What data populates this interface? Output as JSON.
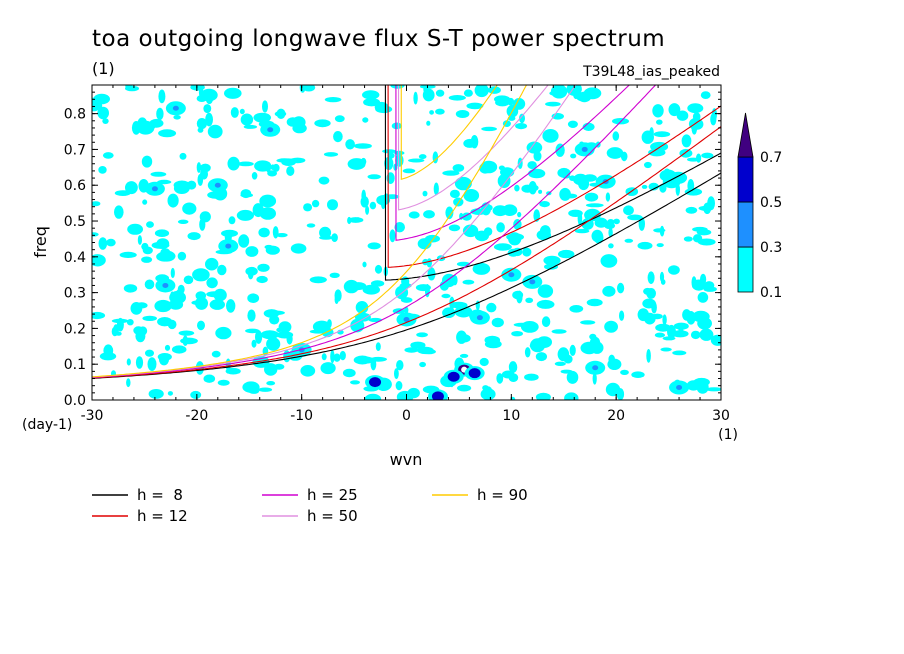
{
  "chart_data": {
    "type": "heatmap",
    "title": "toa outgoing longwave flux S-T power spectrum",
    "subtitle_left": "(1)",
    "subtitle_right": "T39L48_ias_peaked",
    "xlabel": "wvn",
    "ylabel": "freq",
    "x_unit": "(1)",
    "y_unit": "(day-1)",
    "xlim": [
      -30,
      30
    ],
    "ylim": [
      0,
      0.88
    ],
    "x_ticks": [
      -30,
      -20,
      -10,
      0,
      10,
      20,
      30
    ],
    "x_tick_labels": [
      "-30",
      "-20",
      "-10",
      "0",
      "10",
      "20",
      "30"
    ],
    "y_ticks": [
      0,
      0.1,
      0.2,
      0.3,
      0.4,
      0.5,
      0.6,
      0.7,
      0.8
    ],
    "y_tick_labels": [
      "0.0",
      "0.1",
      "0.2",
      "0.3",
      "0.4",
      "0.5",
      "0.6",
      "0.7",
      "0.8"
    ],
    "colorbar": {
      "levels": [
        0.1,
        0.3,
        0.5,
        0.7
      ],
      "labels": [
        "0.1",
        "0.3",
        "0.5",
        "0.7"
      ],
      "colors": [
        "#00ffff",
        "#1e90ff",
        "#0000cd",
        "#400080"
      ]
    },
    "series": [
      {
        "name": "h =  8",
        "h": 8,
        "color": "#000000"
      },
      {
        "name": "h = 12",
        "h": 12,
        "color": "#e00000"
      },
      {
        "name": "h = 25",
        "h": 25,
        "color": "#d000d0"
      },
      {
        "name": "h = 50",
        "h": 50,
        "color": "#e090e0"
      },
      {
        "name": "h = 90",
        "h": 90,
        "color": "#ffcc00"
      }
    ],
    "blobs": [
      {
        "x": 5.5,
        "y": 0.085,
        "level": 0.7
      },
      {
        "x": 6.5,
        "y": 0.075,
        "level": 0.5
      },
      {
        "x": 4.5,
        "y": 0.065,
        "level": 0.5
      },
      {
        "x": -3,
        "y": 0.05,
        "level": 0.5
      },
      {
        "x": 3,
        "y": 0.01,
        "level": 0.5
      },
      {
        "x": 26,
        "y": 0.035,
        "level": 0.3
      },
      {
        "x": -22,
        "y": 0.815,
        "level": 0.3
      },
      {
        "x": -13,
        "y": 0.755,
        "level": 0.3
      },
      {
        "x": 0,
        "y": 0.225,
        "level": 0.3
      },
      {
        "x": 7,
        "y": 0.23,
        "level": 0.3
      },
      {
        "x": -23,
        "y": 0.32,
        "level": 0.3
      },
      {
        "x": 12,
        "y": 0.33,
        "level": 0.3
      },
      {
        "x": 17,
        "y": 0.7,
        "level": 0.3
      },
      {
        "x": -17,
        "y": 0.43,
        "level": 0.3
      },
      {
        "x": 18,
        "y": 0.09,
        "level": 0.3
      },
      {
        "x": -10,
        "y": 0.14,
        "level": 0.3
      },
      {
        "x": -18,
        "y": 0.6,
        "level": 0.3
      },
      {
        "x": 19,
        "y": 0.61,
        "level": 0.3
      },
      {
        "x": 10,
        "y": 0.35,
        "level": 0.3
      },
      {
        "x": -24,
        "y": 0.59,
        "level": 0.3
      }
    ]
  }
}
